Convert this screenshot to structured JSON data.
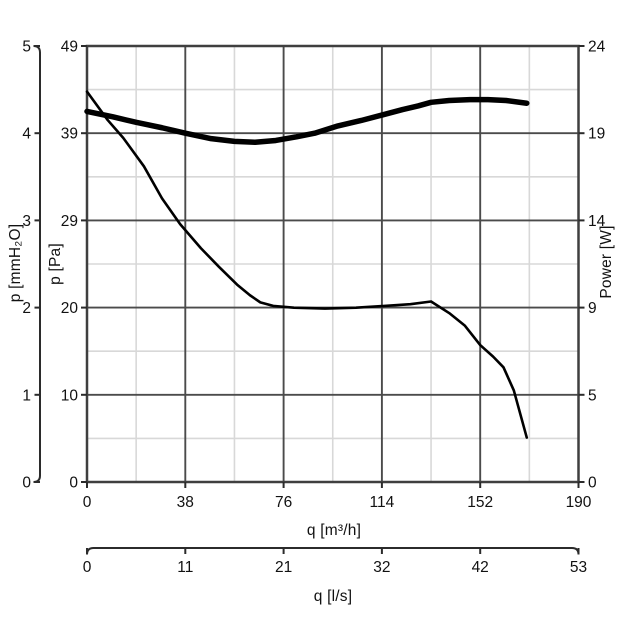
{
  "chart_data": {
    "type": "line",
    "title": "",
    "grid": "on",
    "background": "#ffffff",
    "colors": {
      "frame": "#3f3f3f",
      "grid_major": "#4b4b4b",
      "grid_minor": "#d8d8d8",
      "tick": "#2b2b2b",
      "text": "#111111",
      "curve": "#000000"
    },
    "x_axes": [
      {
        "id": "m3h",
        "label": "q [m³/h]",
        "ticks": [
          "0",
          "38",
          "76",
          "114",
          "152",
          "190"
        ],
        "range": [
          0,
          190
        ],
        "position": "bottom-main"
      },
      {
        "id": "ls",
        "label": "q [l/s]",
        "ticks": [
          "0",
          "11",
          "21",
          "32",
          "42",
          "53"
        ],
        "range": [
          0,
          53
        ],
        "position": "bottom-secondary"
      }
    ],
    "y_axes": [
      {
        "id": "mmh2o",
        "label": "p [mmH₂O]",
        "ticks": [
          "0",
          "1",
          "2",
          "3",
          "4",
          "5"
        ],
        "range": [
          0,
          5
        ],
        "position": "outer-left"
      },
      {
        "id": "pa",
        "label": "p [Pa]",
        "ticks": [
          "0",
          "10",
          "20",
          "29",
          "39",
          "49"
        ],
        "range": [
          0,
          49
        ],
        "position": "left"
      },
      {
        "id": "w",
        "label": "Power [W]",
        "ticks": [
          "0",
          "5",
          "9",
          "14",
          "19",
          "24"
        ],
        "range": [
          0,
          24
        ],
        "position": "right"
      }
    ],
    "series": [
      {
        "name": "pressure-curve",
        "unit": "Pa",
        "axis_max": 49.03,
        "style": "thin",
        "points": [
          [
            0,
            43.9
          ],
          [
            8,
            40.7
          ],
          [
            14,
            38.7
          ],
          [
            22,
            35.5
          ],
          [
            29,
            31.9
          ],
          [
            36,
            29.0
          ],
          [
            44,
            26.3
          ],
          [
            51,
            24.2
          ],
          [
            58,
            22.2
          ],
          [
            63,
            21.0
          ],
          [
            67,
            20.2
          ],
          [
            72,
            19.8
          ],
          [
            80,
            19.6
          ],
          [
            92,
            19.5
          ],
          [
            104,
            19.6
          ],
          [
            115,
            19.8
          ],
          [
            125,
            20.0
          ],
          [
            133,
            20.3
          ],
          [
            140,
            19.0
          ],
          [
            146,
            17.6
          ],
          [
            152,
            15.4
          ],
          [
            157,
            14.1
          ],
          [
            161,
            12.9
          ],
          [
            165,
            10.3
          ],
          [
            170,
            5.0
          ]
        ]
      },
      {
        "name": "power-curve",
        "unit": "W",
        "axis_max": 24,
        "style": "thick",
        "points": [
          [
            0,
            20.4
          ],
          [
            10,
            20.1
          ],
          [
            19,
            19.8
          ],
          [
            29,
            19.5
          ],
          [
            38,
            19.2
          ],
          [
            48,
            18.9
          ],
          [
            57,
            18.75
          ],
          [
            65,
            18.7
          ],
          [
            73,
            18.8
          ],
          [
            81,
            19.0
          ],
          [
            88,
            19.2
          ],
          [
            97,
            19.6
          ],
          [
            106,
            19.9
          ],
          [
            114,
            20.2
          ],
          [
            122,
            20.5
          ],
          [
            128,
            20.7
          ],
          [
            133,
            20.9
          ],
          [
            140,
            21.0
          ],
          [
            148,
            21.05
          ],
          [
            155,
            21.05
          ],
          [
            162,
            21.0
          ],
          [
            170,
            20.85
          ]
        ]
      }
    ]
  }
}
